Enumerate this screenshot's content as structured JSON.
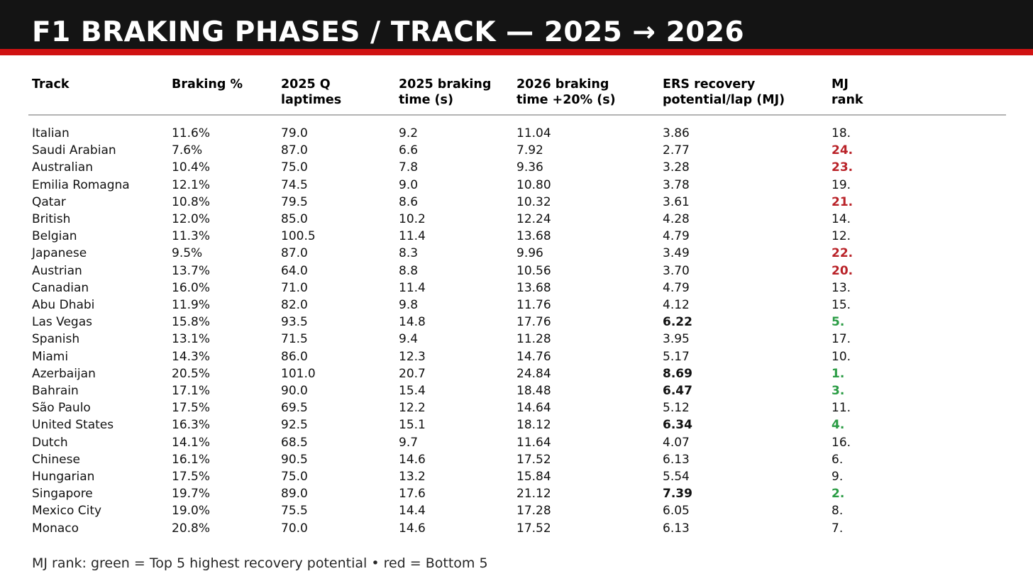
{
  "header": {
    "title": "F1 BRAKING PHASES / TRACK — 2025 → 2026"
  },
  "colors": {
    "title_bar_bg": "#141414",
    "accent_stripe_red": "#d01212",
    "rank_top5_green": "#2a9c44",
    "rank_bottom5_red": "#b92228",
    "header_rule_gray": "#b3b3b3"
  },
  "chart_data": {
    "type": "table",
    "title": "F1 BRAKING PHASES / TRACK — 2025 → 2026",
    "columns": [
      "Track",
      "Braking %",
      "2025 Q\nlaptimes",
      "2025 braking\ntime (s)",
      "2026 braking\ntime +20% (s)",
      "ERS recovery\npotential/lap (MJ)",
      "MJ\nrank"
    ],
    "rows": [
      {
        "track": "Italian",
        "braking_pct": "11.6%",
        "q_laptime": "79.0",
        "braking_2025": "9.2",
        "braking_2026": "11.04",
        "ers_mj": "3.86",
        "ers_bold": false,
        "mj_rank": "18.",
        "rank_tier": "normal"
      },
      {
        "track": "Saudi Arabian",
        "braking_pct": "7.6%",
        "q_laptime": "87.0",
        "braking_2025": "6.6",
        "braking_2026": "7.92",
        "ers_mj": "2.77",
        "ers_bold": false,
        "mj_rank": "24.",
        "rank_tier": "bottom5"
      },
      {
        "track": "Australian",
        "braking_pct": "10.4%",
        "q_laptime": "75.0",
        "braking_2025": "7.8",
        "braking_2026": "9.36",
        "ers_mj": "3.28",
        "ers_bold": false,
        "mj_rank": "23.",
        "rank_tier": "bottom5"
      },
      {
        "track": "Emilia Romagna",
        "braking_pct": "12.1%",
        "q_laptime": "74.5",
        "braking_2025": "9.0",
        "braking_2026": "10.80",
        "ers_mj": "3.78",
        "ers_bold": false,
        "mj_rank": "19.",
        "rank_tier": "normal"
      },
      {
        "track": "Qatar",
        "braking_pct": "10.8%",
        "q_laptime": "79.5",
        "braking_2025": "8.6",
        "braking_2026": "10.32",
        "ers_mj": "3.61",
        "ers_bold": false,
        "mj_rank": "21.",
        "rank_tier": "bottom5"
      },
      {
        "track": "British",
        "braking_pct": "12.0%",
        "q_laptime": "85.0",
        "braking_2025": "10.2",
        "braking_2026": "12.24",
        "ers_mj": "4.28",
        "ers_bold": false,
        "mj_rank": "14.",
        "rank_tier": "normal"
      },
      {
        "track": "Belgian",
        "braking_pct": "11.3%",
        "q_laptime": "100.5",
        "braking_2025": "11.4",
        "braking_2026": "13.68",
        "ers_mj": "4.79",
        "ers_bold": false,
        "mj_rank": "12.",
        "rank_tier": "normal"
      },
      {
        "track": "Japanese",
        "braking_pct": "9.5%",
        "q_laptime": "87.0",
        "braking_2025": "8.3",
        "braking_2026": "9.96",
        "ers_mj": "3.49",
        "ers_bold": false,
        "mj_rank": "22.",
        "rank_tier": "bottom5"
      },
      {
        "track": "Austrian",
        "braking_pct": "13.7%",
        "q_laptime": "64.0",
        "braking_2025": "8.8",
        "braking_2026": "10.56",
        "ers_mj": "3.70",
        "ers_bold": false,
        "mj_rank": "20.",
        "rank_tier": "bottom5"
      },
      {
        "track": "Canadian",
        "braking_pct": "16.0%",
        "q_laptime": "71.0",
        "braking_2025": "11.4",
        "braking_2026": "13.68",
        "ers_mj": "4.79",
        "ers_bold": false,
        "mj_rank": "13.",
        "rank_tier": "normal"
      },
      {
        "track": "Abu Dhabi",
        "braking_pct": "11.9%",
        "q_laptime": "82.0",
        "braking_2025": "9.8",
        "braking_2026": "11.76",
        "ers_mj": "4.12",
        "ers_bold": false,
        "mj_rank": "15.",
        "rank_tier": "normal"
      },
      {
        "track": "Las Vegas",
        "braking_pct": "15.8%",
        "q_laptime": "93.5",
        "braking_2025": "14.8",
        "braking_2026": "17.76",
        "ers_mj": "6.22",
        "ers_bold": true,
        "mj_rank": "5.",
        "rank_tier": "top5"
      },
      {
        "track": "Spanish",
        "braking_pct": "13.1%",
        "q_laptime": "71.5",
        "braking_2025": "9.4",
        "braking_2026": "11.28",
        "ers_mj": "3.95",
        "ers_bold": false,
        "mj_rank": "17.",
        "rank_tier": "normal"
      },
      {
        "track": "Miami",
        "braking_pct": "14.3%",
        "q_laptime": "86.0",
        "braking_2025": "12.3",
        "braking_2026": "14.76",
        "ers_mj": "5.17",
        "ers_bold": false,
        "mj_rank": "10.",
        "rank_tier": "normal"
      },
      {
        "track": "Azerbaijan",
        "braking_pct": "20.5%",
        "q_laptime": "101.0",
        "braking_2025": "20.7",
        "braking_2026": "24.84",
        "ers_mj": "8.69",
        "ers_bold": true,
        "mj_rank": "1.",
        "rank_tier": "top5"
      },
      {
        "track": "Bahrain",
        "braking_pct": "17.1%",
        "q_laptime": "90.0",
        "braking_2025": "15.4",
        "braking_2026": "18.48",
        "ers_mj": "6.47",
        "ers_bold": true,
        "mj_rank": "3.",
        "rank_tier": "top5"
      },
      {
        "track": "São Paulo",
        "braking_pct": "17.5%",
        "q_laptime": "69.5",
        "braking_2025": "12.2",
        "braking_2026": "14.64",
        "ers_mj": "5.12",
        "ers_bold": false,
        "mj_rank": "11.",
        "rank_tier": "normal"
      },
      {
        "track": "United States",
        "braking_pct": "16.3%",
        "q_laptime": "92.5",
        "braking_2025": "15.1",
        "braking_2026": "18.12",
        "ers_mj": "6.34",
        "ers_bold": true,
        "mj_rank": "4.",
        "rank_tier": "top5"
      },
      {
        "track": "Dutch",
        "braking_pct": "14.1%",
        "q_laptime": "68.5",
        "braking_2025": "9.7",
        "braking_2026": "11.64",
        "ers_mj": "4.07",
        "ers_bold": false,
        "mj_rank": "16.",
        "rank_tier": "normal"
      },
      {
        "track": "Chinese",
        "braking_pct": "16.1%",
        "q_laptime": "90.5",
        "braking_2025": "14.6",
        "braking_2026": "17.52",
        "ers_mj": "6.13",
        "ers_bold": false,
        "mj_rank": "6.",
        "rank_tier": "normal"
      },
      {
        "track": "Hungarian",
        "braking_pct": "17.5%",
        "q_laptime": "75.0",
        "braking_2025": "13.2",
        "braking_2026": "15.84",
        "ers_mj": "5.54",
        "ers_bold": false,
        "mj_rank": "9.",
        "rank_tier": "normal"
      },
      {
        "track": "Singapore",
        "braking_pct": "19.7%",
        "q_laptime": "89.0",
        "braking_2025": "17.6",
        "braking_2026": "21.12",
        "ers_mj": "7.39",
        "ers_bold": true,
        "mj_rank": "2.",
        "rank_tier": "top5"
      },
      {
        "track": "Mexico City",
        "braking_pct": "19.0%",
        "q_laptime": "75.5",
        "braking_2025": "14.4",
        "braking_2026": "17.28",
        "ers_mj": "6.05",
        "ers_bold": false,
        "mj_rank": "8.",
        "rank_tier": "normal"
      },
      {
        "track": "Monaco",
        "braking_pct": "20.8%",
        "q_laptime": "70.0",
        "braking_2025": "14.6",
        "braking_2026": "17.52",
        "ers_mj": "6.13",
        "ers_bold": false,
        "mj_rank": "7.",
        "rank_tier": "normal"
      }
    ],
    "legend": "MJ rank: green = Top 5 highest recovery potential • red = Bottom 5",
    "legend_position": "bottom-left"
  },
  "footnote": {
    "text": "MJ rank: green = Top 5 highest recovery potential • red = Bottom 5"
  }
}
